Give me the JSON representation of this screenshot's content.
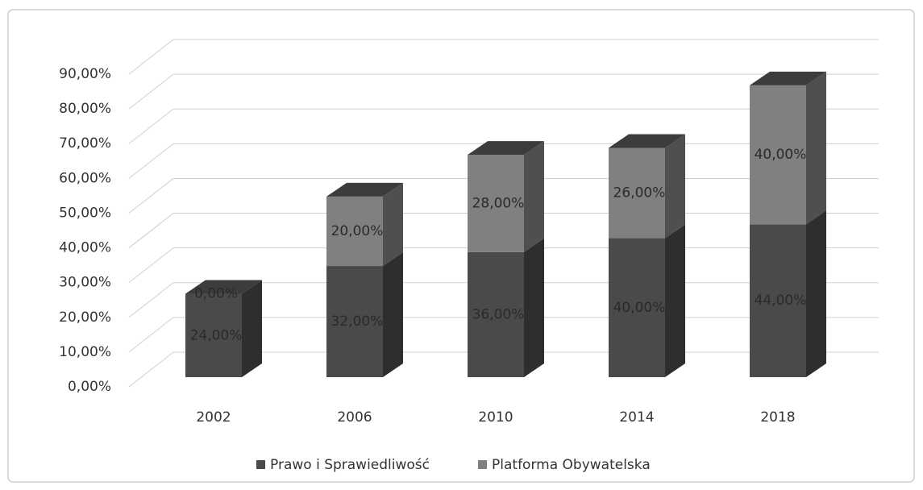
{
  "chart_data": {
    "type": "bar3d_stacked",
    "categories": [
      "2002",
      "2006",
      "2010",
      "2014",
      "2018"
    ],
    "series": [
      {
        "name": "Prawo i Sprawiedliwość",
        "color": "#4a4a4a",
        "values": [
          24,
          32,
          36,
          40,
          44
        ],
        "value_labels": [
          "24,00%",
          "32,00%",
          "36,00%",
          "40,00%",
          "44,00%"
        ]
      },
      {
        "name": "Platforma Obywatelska",
        "color": "#808080",
        "values": [
          0,
          20,
          28,
          26,
          40
        ],
        "value_labels": [
          "0,00%",
          "20,00%",
          "28,00%",
          "26,00%",
          "40,00%"
        ]
      }
    ],
    "ylim": [
      0,
      90
    ],
    "yticks": [
      {
        "value": 0,
        "label": "0,00%"
      },
      {
        "value": 10,
        "label": "10,00%"
      },
      {
        "value": 20,
        "label": "20,00%"
      },
      {
        "value": 30,
        "label": "30,00%"
      },
      {
        "value": 40,
        "label": "40,00%"
      },
      {
        "value": 50,
        "label": "50,00%"
      },
      {
        "value": 60,
        "label": "60,00%"
      },
      {
        "value": 70,
        "label": "70,00%"
      },
      {
        "value": 80,
        "label": "80,00%"
      },
      {
        "value": 90,
        "label": "90,00%"
      }
    ],
    "grid": true,
    "legend": "bottom"
  }
}
